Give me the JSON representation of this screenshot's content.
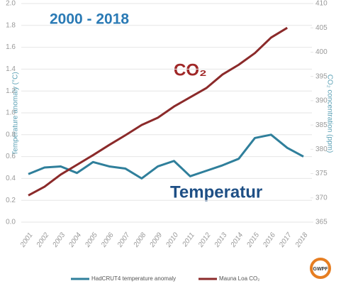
{
  "chart_data": {
    "type": "line",
    "annotations": [
      "2000 - 2018",
      "CO₂",
      "Temperatur"
    ],
    "ylabel": "Temperature anomaly (°C)",
    "y2label": "CO₂ concentration (ppm)",
    "categories": [
      "2001",
      "2002",
      "2003",
      "2004",
      "2005",
      "2006",
      "2007",
      "2008",
      "2009",
      "2010",
      "2011",
      "2012",
      "2013",
      "2014",
      "2015",
      "2016",
      "2017",
      "2018"
    ],
    "series": [
      {
        "name": "HadCRUT4 temperature anomaly",
        "color": "#2f7f9b",
        "values": [
          0.44,
          0.5,
          0.51,
          0.45,
          0.55,
          0.51,
          0.49,
          0.4,
          0.51,
          0.56,
          0.42,
          0.47,
          0.52,
          0.58,
          0.77,
          0.8,
          0.68,
          0.6
        ]
      },
      {
        "name": "Mauna Loa CO₂",
        "color": "#8b2a2a",
        "axis": "y2",
        "values": [
          370.5,
          372.3,
          374.8,
          376.8,
          378.8,
          380.9,
          382.9,
          385.0,
          386.5,
          388.8,
          390.7,
          392.6,
          395.4,
          397.4,
          399.8,
          403.0,
          405.0,
          null
        ]
      }
    ],
    "ylim": [
      0,
      2
    ],
    "yticks": [
      {
        "value": 0,
        "label": "0.0"
      },
      0.2,
      0.4,
      0.6,
      0.8,
      {
        "value": 1,
        "label": "1.0"
      },
      1.2,
      1.4,
      1.6,
      1.8,
      {
        "value": 2,
        "label": "2.0"
      }
    ],
    "y2lim": [
      365,
      410
    ],
    "y2ticks": [
      365,
      370,
      375,
      380,
      385,
      390,
      395,
      400,
      405,
      410
    ],
    "grid": true,
    "logo": "GWPF"
  }
}
